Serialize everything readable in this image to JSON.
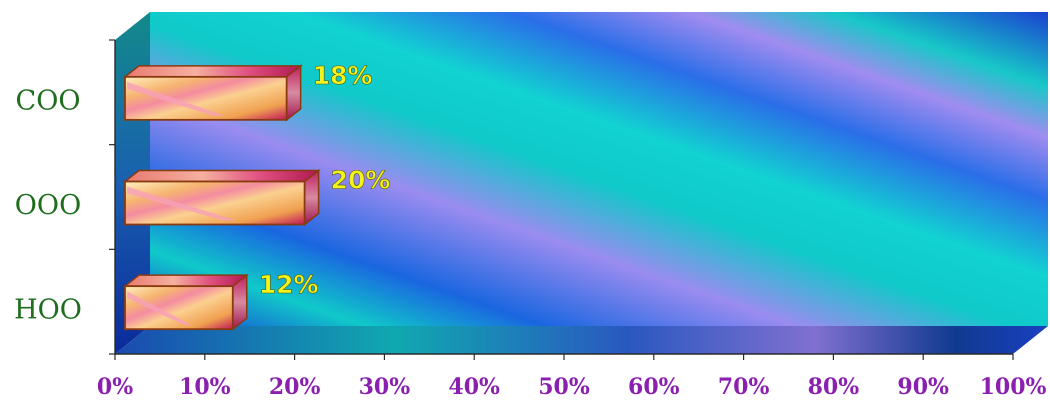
{
  "chart_data": {
    "type": "bar",
    "orientation": "horizontal",
    "style": "3d",
    "categories": [
      "COO",
      "OOO",
      "HOO"
    ],
    "values": [
      18,
      20,
      12
    ],
    "data_labels": [
      "18%",
      "20%",
      "12%"
    ],
    "xlim": [
      0,
      100
    ],
    "x_ticks": [
      "0%",
      "10%",
      "20%",
      "30%",
      "40%",
      "50%",
      "60%",
      "70%",
      "80%",
      "90%",
      "100%"
    ],
    "grid": false,
    "legend": "none",
    "title": "",
    "xlabel": "",
    "ylabel": ""
  },
  "colors": {
    "category_label": "#1e6e1e",
    "tick_label": "#8a1fb0",
    "data_label": "#f3f31e",
    "bar_face_light": "#fde3a0",
    "bar_face_dark": "#f0a050",
    "bar_stripe": "#c01a5a",
    "bar_edge": "#8a3a10",
    "wall_teal": "#10c9c9",
    "wall_blue": "#1a46e0",
    "wall_violet": "#9a8cf0"
  }
}
